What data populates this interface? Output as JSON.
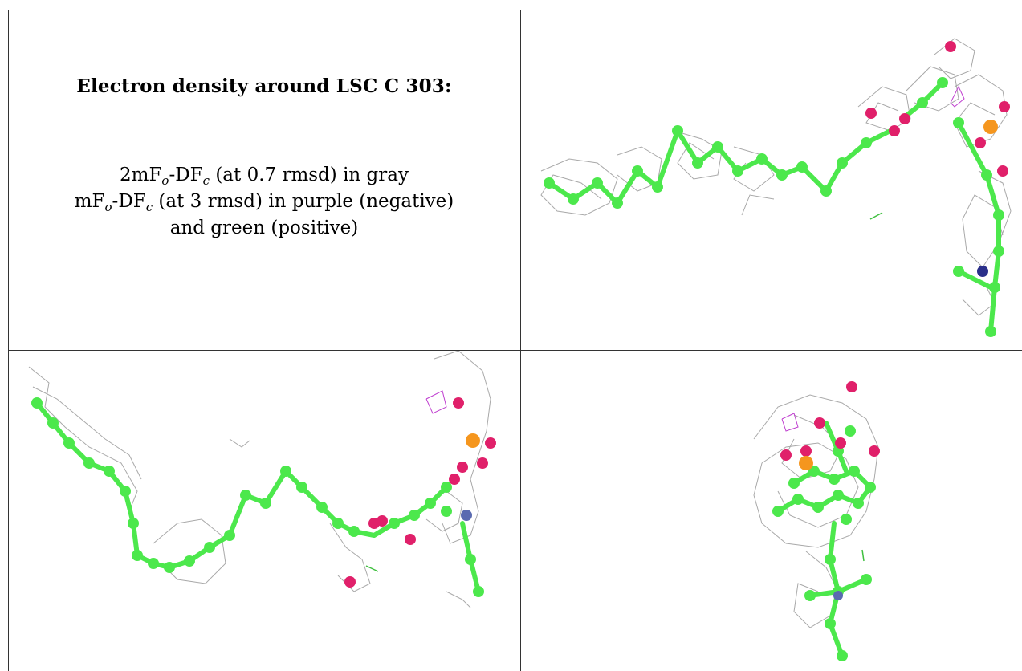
{
  "caption": {
    "title": "Electron density around LSC C 303:",
    "line1": {
      "prefix": "2mF",
      "sub1": "o",
      "mid": "-DF",
      "sub2": "c",
      "suffix": " (at 0.7 rmsd) in gray"
    },
    "line2": {
      "prefix": "mF",
      "sub1": "o",
      "mid": "-DF",
      "sub2": "c",
      "suffix": " (at 3 rmsd) in purple (negative)"
    },
    "line3": "and green (positive)"
  },
  "colors": {
    "carbon": "#4ce84c",
    "oxygen": "#e0206a",
    "phosphorus": "#f5961e",
    "nitrogen": "#2a2f8a",
    "mesh_2fofc": "#9a9a9a",
    "mesh_negative": "#c040d0",
    "mesh_positive": "#40c040"
  },
  "views": [
    {
      "name": "view-top-right",
      "icon": "molecule-model-icon"
    },
    {
      "name": "view-bottom-left",
      "icon": "molecule-model-icon"
    },
    {
      "name": "view-bottom-right",
      "icon": "molecule-model-icon"
    }
  ]
}
